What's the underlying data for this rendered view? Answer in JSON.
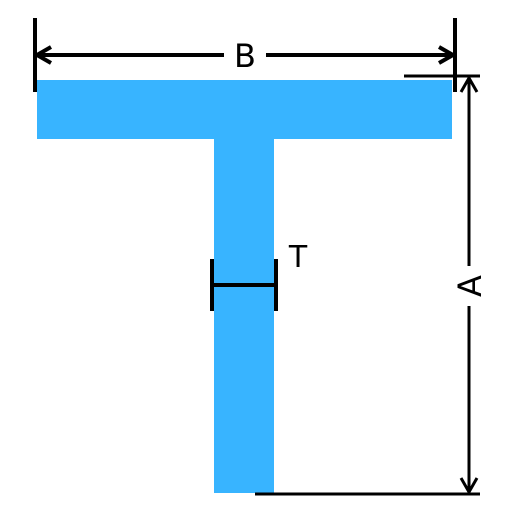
{
  "diagram": {
    "shape": "T-beam cross-section",
    "colors": {
      "section_fill": "#38b4ff",
      "dimension_lines": "#000000",
      "background": "#ffffff"
    },
    "labels": {
      "width": "B",
      "height": "A",
      "thickness": "T"
    }
  }
}
